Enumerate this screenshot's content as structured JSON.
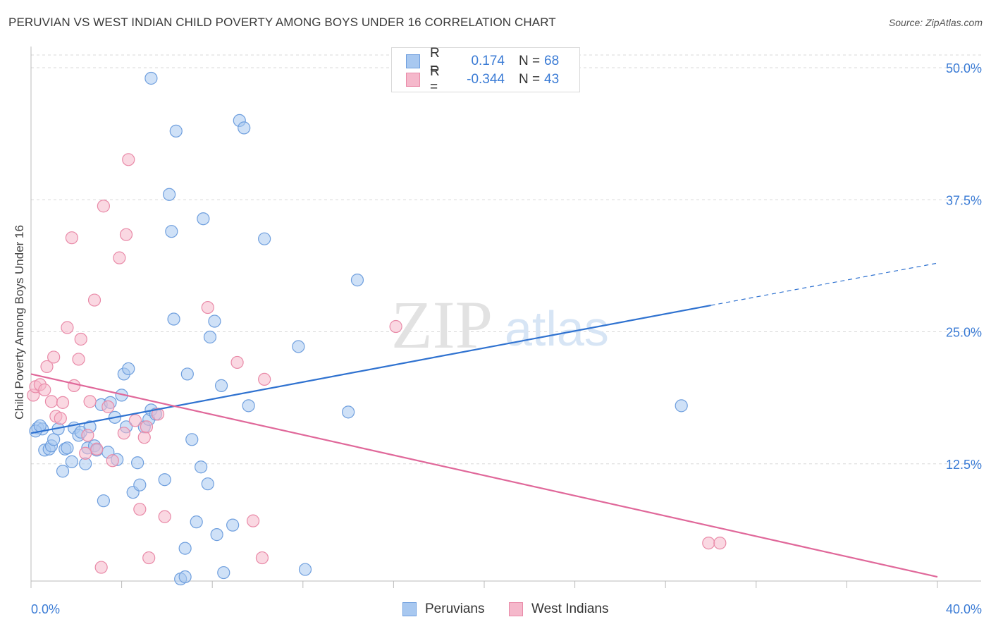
{
  "title": "PERUVIAN VS WEST INDIAN CHILD POVERTY AMONG BOYS UNDER 16 CORRELATION CHART",
  "source": "Source: ZipAtlas.com",
  "watermark": {
    "zip": "ZIP",
    "atlas": "atlas"
  },
  "colors": {
    "blue_fill": "#a8c8f0",
    "blue_stroke": "#6f9fde",
    "blue_line": "#2f72d0",
    "pink_fill": "#f5b8cb",
    "pink_stroke": "#e98aa8",
    "pink_line": "#e0689a",
    "axis_text": "#3a7bd5",
    "grid": "#d8d8d8"
  },
  "legend_top": [
    {
      "r_label": "R =",
      "r_value": "0.174",
      "n_label": "N =",
      "n_value": "68",
      "series": "blue"
    },
    {
      "r_label": "R =",
      "r_value": "-0.344",
      "n_label": "N =",
      "n_value": "43",
      "series": "pink"
    }
  ],
  "legend_bottom": [
    {
      "label": "Peruvians",
      "series": "blue"
    },
    {
      "label": "West Indians",
      "series": "pink"
    }
  ],
  "chart_data": {
    "type": "scatter",
    "title": "PERUVIAN VS WEST INDIAN CHILD POVERTY AMONG BOYS UNDER 16 CORRELATION CHART",
    "xlabel": "",
    "ylabel": "Child Poverty Among Boys Under 16",
    "xlim": [
      0,
      40
    ],
    "ylim": [
      0,
      50
    ],
    "x_tick_labels": [
      "0.0%",
      "40.0%"
    ],
    "y_ticks": [
      12.5,
      25.0,
      37.5,
      50.0
    ],
    "y_tick_labels": [
      "12.5%",
      "25.0%",
      "37.5%",
      "50.0%"
    ],
    "grid": true,
    "series": [
      {
        "name": "Peruvians",
        "color": "blue",
        "r": 0.174,
        "n": 68,
        "trend": {
          "x0": 0,
          "y0": 15.4,
          "x1": 30.0,
          "y1": 27.5,
          "dash_to_x": 40.0,
          "dash_to_y": 31.5
        },
        "points": [
          [
            0.3,
            15.9
          ],
          [
            0.5,
            15.8
          ],
          [
            0.6,
            13.8
          ],
          [
            0.8,
            13.9
          ],
          [
            0.9,
            14.2
          ],
          [
            1.0,
            14.8
          ],
          [
            1.2,
            15.8
          ],
          [
            1.4,
            11.8
          ],
          [
            1.5,
            13.9
          ],
          [
            1.6,
            14.0
          ],
          [
            1.8,
            12.7
          ],
          [
            1.9,
            15.9
          ],
          [
            2.1,
            15.2
          ],
          [
            2.2,
            15.5
          ],
          [
            2.4,
            12.5
          ],
          [
            2.5,
            14.0
          ],
          [
            2.6,
            16.0
          ],
          [
            2.8,
            14.2
          ],
          [
            2.9,
            13.8
          ],
          [
            3.1,
            18.1
          ],
          [
            3.2,
            9.0
          ],
          [
            3.4,
            13.6
          ],
          [
            3.5,
            18.3
          ],
          [
            3.7,
            16.9
          ],
          [
            3.8,
            12.9
          ],
          [
            4.0,
            19.0
          ],
          [
            4.1,
            21.0
          ],
          [
            4.2,
            16.0
          ],
          [
            4.3,
            21.5
          ],
          [
            4.5,
            9.8
          ],
          [
            4.7,
            12.6
          ],
          [
            4.8,
            10.5
          ],
          [
            5.0,
            16.0
          ],
          [
            5.2,
            16.7
          ],
          [
            5.3,
            49.0
          ],
          [
            5.3,
            17.6
          ],
          [
            5.5,
            17.2
          ],
          [
            5.9,
            11.0
          ],
          [
            6.1,
            38.0
          ],
          [
            6.2,
            34.5
          ],
          [
            6.3,
            26.2
          ],
          [
            6.4,
            44.0
          ],
          [
            6.6,
            1.6
          ],
          [
            6.8,
            4.5
          ],
          [
            6.8,
            1.8
          ],
          [
            6.9,
            21.0
          ],
          [
            7.1,
            14.8
          ],
          [
            7.3,
            7.0
          ],
          [
            7.5,
            12.2
          ],
          [
            7.6,
            35.7
          ],
          [
            7.8,
            10.6
          ],
          [
            7.9,
            24.5
          ],
          [
            8.1,
            26.0
          ],
          [
            8.2,
            5.8
          ],
          [
            8.4,
            19.9
          ],
          [
            8.5,
            2.2
          ],
          [
            8.9,
            6.7
          ],
          [
            9.2,
            45.0
          ],
          [
            9.4,
            44.3
          ],
          [
            9.6,
            18.0
          ],
          [
            10.3,
            33.8
          ],
          [
            11.8,
            23.6
          ],
          [
            12.1,
            2.5
          ],
          [
            14.0,
            17.4
          ],
          [
            14.4,
            29.9
          ],
          [
            28.7,
            18.0
          ],
          [
            0.2,
            15.6
          ],
          [
            0.4,
            16.1
          ]
        ]
      },
      {
        "name": "West Indians",
        "color": "pink",
        "r": -0.344,
        "n": 43,
        "trend": {
          "x0": 0,
          "y0": 21.0,
          "x1": 40.0,
          "y1": 1.8
        },
        "points": [
          [
            0.1,
            19.0
          ],
          [
            0.2,
            19.8
          ],
          [
            0.4,
            20.0
          ],
          [
            0.6,
            19.5
          ],
          [
            0.7,
            21.7
          ],
          [
            0.9,
            18.4
          ],
          [
            1.0,
            22.6
          ],
          [
            1.1,
            17.0
          ],
          [
            1.3,
            16.8
          ],
          [
            1.4,
            18.3
          ],
          [
            1.6,
            25.4
          ],
          [
            1.8,
            33.9
          ],
          [
            1.9,
            19.9
          ],
          [
            2.1,
            22.4
          ],
          [
            2.2,
            24.3
          ],
          [
            2.4,
            13.5
          ],
          [
            2.5,
            15.2
          ],
          [
            2.6,
            18.4
          ],
          [
            2.8,
            28.0
          ],
          [
            2.9,
            13.9
          ],
          [
            3.1,
            2.7
          ],
          [
            3.2,
            36.9
          ],
          [
            3.4,
            17.9
          ],
          [
            3.6,
            12.8
          ],
          [
            3.9,
            32.0
          ],
          [
            4.1,
            15.4
          ],
          [
            4.2,
            34.2
          ],
          [
            4.3,
            41.3
          ],
          [
            4.6,
            16.6
          ],
          [
            4.8,
            8.2
          ],
          [
            5.0,
            15.0
          ],
          [
            5.1,
            16.0
          ],
          [
            5.2,
            3.6
          ],
          [
            5.6,
            17.2
          ],
          [
            5.9,
            7.5
          ],
          [
            7.8,
            27.3
          ],
          [
            9.1,
            22.1
          ],
          [
            9.8,
            7.1
          ],
          [
            10.2,
            3.6
          ],
          [
            10.3,
            20.5
          ],
          [
            16.1,
            25.5
          ],
          [
            29.9,
            5.0
          ],
          [
            30.4,
            5.0
          ]
        ]
      }
    ]
  }
}
